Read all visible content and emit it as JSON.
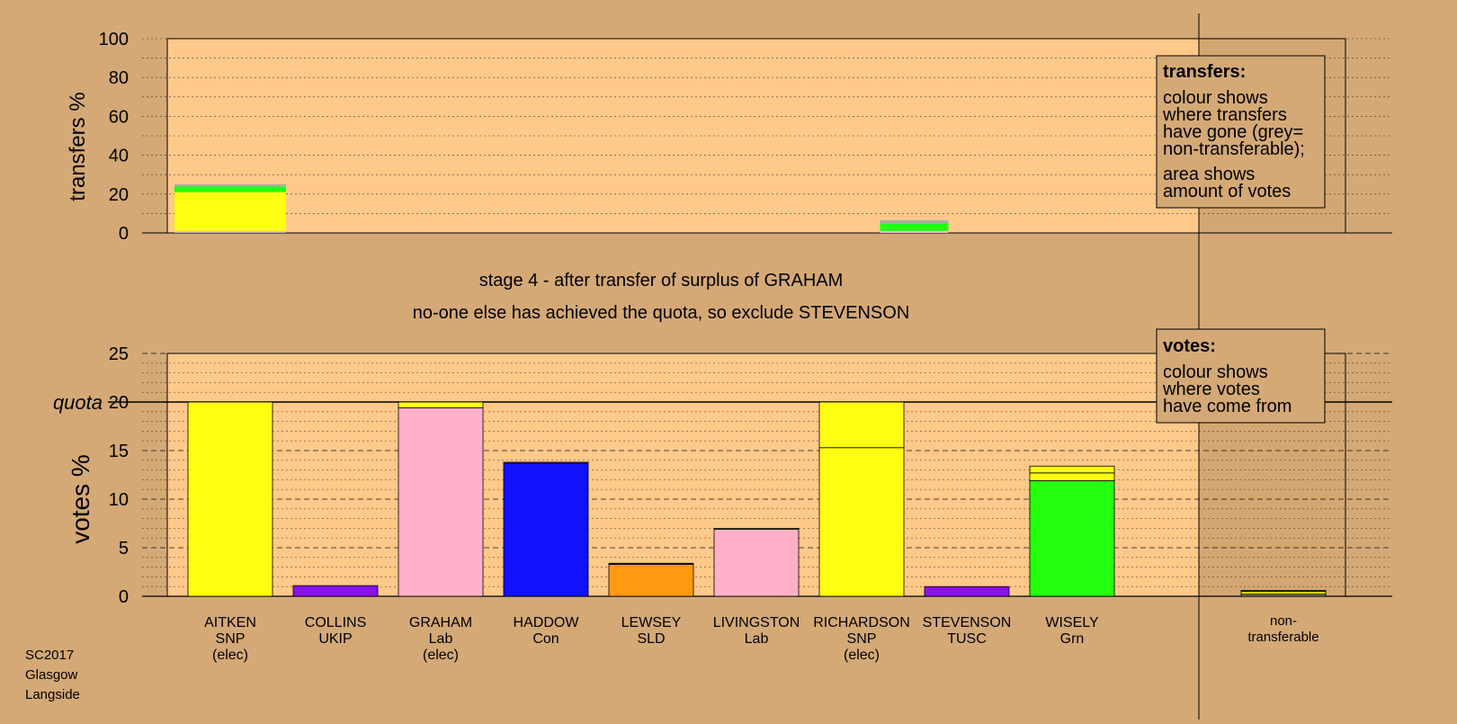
{
  "footer": {
    "lines": [
      "SC2017",
      "Glasgow",
      "Langside"
    ]
  },
  "heading": {
    "stage": "stage 4 - after transfer of surplus of GRAHAM",
    "action": "no-one else has achieved the quota, so exclude STEVENSON"
  },
  "legends": {
    "transfers": {
      "title": "transfers:",
      "lines1": [
        "colour shows",
        "where transfers",
        "have gone (grey=",
        "non-transferable);"
      ],
      "lines2": [
        "area shows",
        "amount of votes"
      ]
    },
    "votes": {
      "title": "votes:",
      "lines": [
        "colour shows",
        "where votes",
        "have come from"
      ]
    }
  },
  "colors": {
    "background": "#d4a976",
    "plot": "#ffc98a",
    "SNP": "#ffff11",
    "UKIP": "#8811ee",
    "Lab": "#ffb0c8",
    "Con": "#1111ff",
    "SLD": "#ff9911",
    "Grn": "#22ff11",
    "TUSC": "#8811ee",
    "grey": "#aaaaaa"
  },
  "chart_data": [
    {
      "type": "bar",
      "ylabel": "transfers %",
      "ylim": [
        0,
        100
      ],
      "yticks": [
        0,
        20,
        40,
        60,
        80,
        100
      ],
      "bars": [
        {
          "slot": 0,
          "segments": [
            {
              "party": "grey",
              "value": 0.5
            },
            {
              "party": "Lab",
              "value": 0.5
            },
            {
              "party": "SNP",
              "value": 2.0
            },
            {
              "party": "SNP",
              "value": 18.0
            },
            {
              "party": "Grn",
              "value": 3.0
            },
            {
              "party": "grey",
              "value": 1.0
            }
          ]
        },
        {
          "slot": 6.5,
          "segments": [
            {
              "party": "Lab",
              "value": 1.0
            },
            {
              "party": "Grn",
              "value": 4.0
            },
            {
              "party": "grey",
              "value": 1.5
            }
          ]
        }
      ]
    },
    {
      "type": "bar",
      "ylabel": "votes %",
      "quota_label": "quota",
      "quota": 20,
      "ylim": [
        0,
        25
      ],
      "yticks": [
        0,
        5,
        10,
        15,
        20,
        25
      ],
      "categories": [
        {
          "name": "AITKEN",
          "party": "SNP",
          "note": "(elec)",
          "segments": [
            {
              "party": "SNP",
              "value": 20.0
            }
          ]
        },
        {
          "name": "COLLINS",
          "party": "UKIP",
          "note": "",
          "segments": [
            {
              "party": "UKIP",
              "value": 1.1
            }
          ]
        },
        {
          "name": "GRAHAM",
          "party": "Lab",
          "note": "(elec)",
          "segments": [
            {
              "party": "Lab",
              "value": 19.4
            },
            {
              "party": "SNP",
              "value": 0.6
            }
          ]
        },
        {
          "name": "HADDOW",
          "party": "Con",
          "note": "",
          "segments": [
            {
              "party": "Con",
              "value": 13.7
            },
            {
              "party": "UKIP",
              "value": 0.1
            }
          ]
        },
        {
          "name": "LEWSEY",
          "party": "SLD",
          "note": "",
          "segments": [
            {
              "party": "SLD",
              "value": 3.3
            },
            {
              "party": "Con",
              "value": 0.1
            }
          ]
        },
        {
          "name": "LIVINGSTON",
          "party": "Lab",
          "note": "",
          "segments": [
            {
              "party": "Lab",
              "value": 6.9
            },
            {
              "party": "SNP",
              "value": 0.1
            }
          ]
        },
        {
          "name": "RICHARDSON",
          "party": "SNP",
          "note": "(elec)",
          "segments": [
            {
              "party": "SNP",
              "value": 15.3
            },
            {
              "party": "SNP",
              "value": 4.7
            }
          ]
        },
        {
          "name": "STEVENSON",
          "party": "TUSC",
          "note": "",
          "segments": [
            {
              "party": "TUSC",
              "value": 1.0
            }
          ]
        },
        {
          "name": "WISELY",
          "party": "Grn",
          "note": "",
          "segments": [
            {
              "party": "Grn",
              "value": 11.9
            },
            {
              "party": "SNP",
              "value": 0.8
            },
            {
              "party": "SNP",
              "value": 0.7
            }
          ]
        }
      ],
      "nontransferable": {
        "label_lines": [
          "non-",
          "transferable"
        ],
        "segments": [
          {
            "party": "grey",
            "value": 0.2
          },
          {
            "party": "SNP",
            "value": 0.3
          },
          {
            "party": "Grn",
            "value": 0.1
          }
        ]
      }
    }
  ]
}
